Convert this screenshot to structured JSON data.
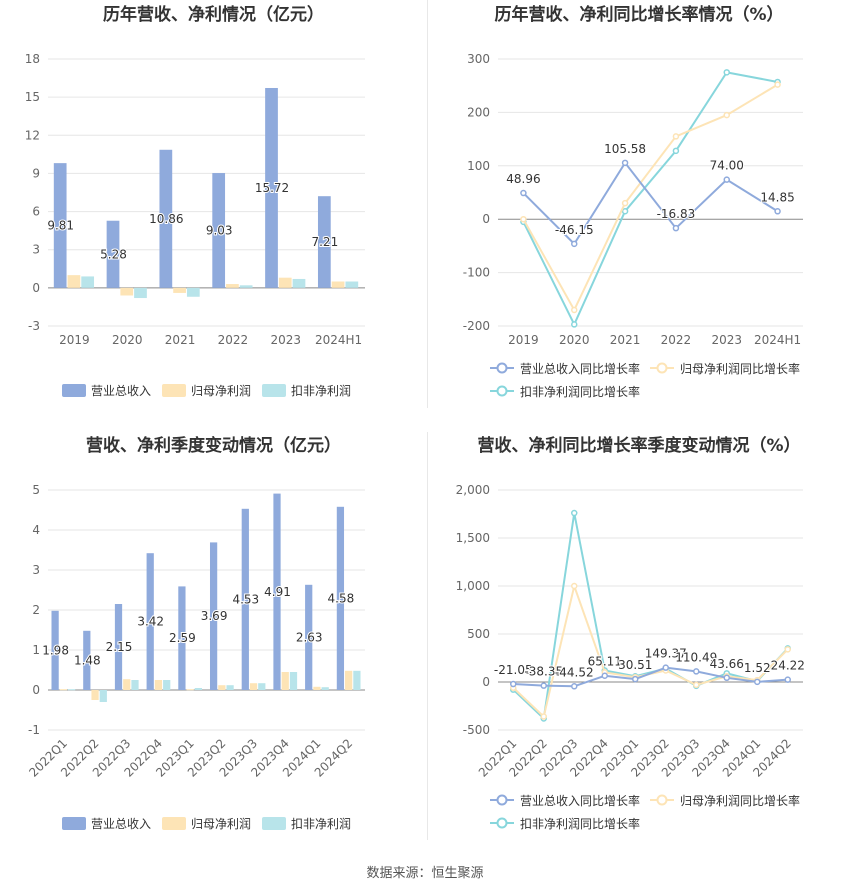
{
  "source": "数据来源：恒生聚源",
  "colors": {
    "revenue": "#8faadc",
    "parent_net": "#fde4b6",
    "deducted_net": "#b8e4ea",
    "revenue_line": "#8faadc",
    "parent_line": "#fde4b6",
    "deducted_line": "#87d6dc",
    "grid": "#e6e6e6",
    "axis": "#999999"
  },
  "chart_data": [
    {
      "id": "annual-bar",
      "type": "bar",
      "title": "历年营收、净利情况（亿元）",
      "categories": [
        "2019",
        "2020",
        "2021",
        "2022",
        "2023",
        "2024H1"
      ],
      "series": [
        {
          "name": "营业总收入",
          "values": [
            9.81,
            5.28,
            10.86,
            9.03,
            15.72,
            7.21
          ]
        },
        {
          "name": "归母净利润",
          "values": [
            1.0,
            -0.6,
            -0.4,
            0.3,
            0.8,
            0.5
          ]
        },
        {
          "name": "扣非净利润",
          "values": [
            0.9,
            -0.8,
            -0.7,
            0.2,
            0.7,
            0.5
          ]
        }
      ],
      "data_labels": [
        "9.81",
        "5.28",
        "10.86",
        "9.03",
        "15.72",
        "7.21"
      ],
      "y_ticks": [
        "18",
        "15",
        "12",
        "9",
        "6",
        "3",
        "0",
        "-3"
      ],
      "ylim": [
        -3,
        18
      ],
      "grid": true,
      "legend": "bottom"
    },
    {
      "id": "annual-line",
      "type": "line",
      "title": "历年营收、净利同比增长率情况（%）",
      "categories": [
        "2019",
        "2020",
        "2021",
        "2022",
        "2023",
        "2024H1"
      ],
      "series": [
        {
          "name": "营业总收入同比增长率",
          "values": [
            48.96,
            -46.15,
            105.58,
            -16.83,
            74.0,
            14.85
          ]
        },
        {
          "name": "归母净利润同比增长率",
          "values": [
            0,
            -170,
            30,
            155,
            195,
            252
          ]
        },
        {
          "name": "扣非净利润同比增长率",
          "values": [
            -5,
            -197,
            15,
            128,
            275,
            257
          ]
        }
      ],
      "data_labels": [
        "48.96",
        "-46.15",
        "105.58",
        "-16.83",
        "74.00",
        "14.85"
      ],
      "y_ticks": [
        "300",
        "200",
        "100",
        "0",
        "-100",
        "-200"
      ],
      "ylim": [
        -200,
        300
      ],
      "grid": true,
      "legend": "bottom"
    },
    {
      "id": "quarter-bar",
      "type": "bar",
      "title": "营收、净利季度变动情况（亿元）",
      "categories": [
        "2022Q1",
        "2022Q2",
        "2022Q3",
        "2022Q4",
        "2023Q1",
        "2023Q2",
        "2023Q3",
        "2023Q4",
        "2024Q1",
        "2024Q2"
      ],
      "series": [
        {
          "name": "营业总收入",
          "values": [
            1.98,
            1.48,
            2.15,
            3.42,
            2.59,
            3.69,
            4.53,
            4.91,
            2.63,
            4.58
          ]
        },
        {
          "name": "归母净利润",
          "values": [
            0.02,
            -0.25,
            0.27,
            0.25,
            0.02,
            0.12,
            0.17,
            0.45,
            0.08,
            0.48
          ]
        },
        {
          "name": "扣非净利润",
          "values": [
            0.02,
            -0.3,
            0.25,
            0.25,
            0.05,
            0.12,
            0.17,
            0.45,
            0.07,
            0.48
          ]
        }
      ],
      "data_labels": [
        "1.98",
        "1.48",
        "2.15",
        "3.42",
        "2.59",
        "3.69",
        "4.53",
        "4.91",
        "2.63",
        "4.58"
      ],
      "y_ticks": [
        "5",
        "4",
        "3",
        "2",
        "1",
        "0",
        "-1"
      ],
      "ylim": [
        -1,
        5
      ],
      "grid": true,
      "legend": "bottom"
    },
    {
      "id": "quarter-line",
      "type": "line",
      "title": "营收、净利同比增长率季度变动情况（%）",
      "categories": [
        "2022Q1",
        "2022Q2",
        "2022Q3",
        "2022Q4",
        "2023Q1",
        "2023Q2",
        "2023Q3",
        "2023Q4",
        "2024Q1",
        "2024Q2"
      ],
      "series": [
        {
          "name": "营业总收入同比增长率",
          "values": [
            -21.05,
            -38.35,
            -44.52,
            65.11,
            30.51,
            149.37,
            110.49,
            43.66,
            1.52,
            24.22
          ]
        },
        {
          "name": "归母净利润同比增长率",
          "values": [
            -60,
            -360,
            1000,
            100,
            50,
            120,
            -30,
            60,
            20,
            340
          ]
        },
        {
          "name": "扣非净利润同比增长率",
          "values": [
            -80,
            -380,
            1760,
            120,
            60,
            140,
            -40,
            90,
            10,
            350
          ]
        }
      ],
      "data_labels": [
        "-21.05",
        "-38.35",
        "-44.52",
        "65.11",
        "30.51",
        "149.37",
        "110.49",
        "43.66",
        "1.52",
        "24.22"
      ],
      "y_ticks": [
        "2,000",
        "1,500",
        "1,000",
        "500",
        "0",
        "-500"
      ],
      "ylim": [
        -500,
        2000
      ],
      "grid": true,
      "legend": "bottom"
    }
  ]
}
